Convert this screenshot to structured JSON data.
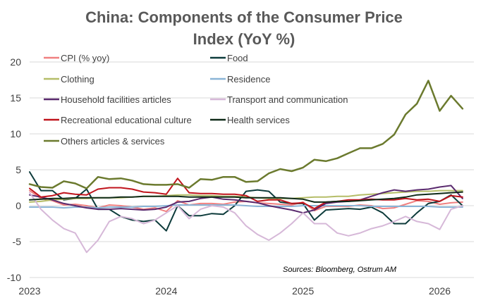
{
  "chart_data": {
    "type": "line",
    "title_line1": "China:  Components of the Consumer Price",
    "title_line2": "Index (YoY %)",
    "xlabel": "",
    "ylabel": "",
    "ylim": [
      -10,
      20
    ],
    "yticks": [
      -10,
      -5,
      0,
      5,
      10,
      15,
      20
    ],
    "xlim": [
      2023.0,
      2026.25
    ],
    "xticks": [
      2023,
      2024,
      2025,
      2026
    ],
    "source": "Sources: Bloomberg, Ostrum AM",
    "x": [
      2023.0,
      2023.083,
      2023.167,
      2023.25,
      2023.333,
      2023.417,
      2023.5,
      2023.583,
      2023.667,
      2023.75,
      2023.833,
      2023.917,
      2024.0,
      2024.083,
      2024.167,
      2024.25,
      2024.333,
      2024.417,
      2024.5,
      2024.583,
      2024.667,
      2024.75,
      2024.833,
      2024.917,
      2025.0,
      2025.083,
      2025.167,
      2025.25,
      2025.333,
      2025.417,
      2025.5,
      2025.583,
      2025.667,
      2025.75,
      2025.833,
      2025.917,
      2026.0,
      2026.083,
      2026.167
    ],
    "series": [
      {
        "name": "CPI (% yoy)",
        "color": "#f08080",
        "width": 2,
        "values": [
          2.1,
          1.0,
          0.7,
          0.1,
          0.2,
          0.0,
          -0.3,
          0.1,
          0.0,
          -0.2,
          -0.5,
          -0.3,
          -0.8,
          0.7,
          0.1,
          0.3,
          0.3,
          0.2,
          0.5,
          0.6,
          0.4,
          0.3,
          0.2,
          0.1,
          0.5,
          -0.7,
          -0.1,
          -0.1,
          -0.1,
          0.1,
          0.0,
          -0.4,
          -0.3,
          0.2,
          0.7,
          0.6,
          0.2,
          0.4,
          0.5
        ]
      },
      {
        "name": "Food",
        "color": "#0d3b3b",
        "width": 2,
        "values": [
          4.7,
          2.1,
          2.1,
          0.8,
          1.0,
          2.3,
          -0.5,
          -0.5,
          -1.5,
          -2.0,
          -2.2,
          -2.0,
          -3.5,
          0.0,
          -1.4,
          -1.4,
          -1.1,
          -1.2,
          0.0,
          2.0,
          2.2,
          2.0,
          0.5,
          0.3,
          0.3,
          -2.0,
          -0.6,
          -0.5,
          -0.4,
          -0.5,
          -0.2,
          -1.0,
          -2.5,
          -2.5,
          -1.0,
          0.3,
          0.6,
          1.5,
          0.0
        ]
      },
      {
        "name": "Clothing",
        "color": "#b5bd68",
        "width": 2,
        "values": [
          0.5,
          0.6,
          0.8,
          0.9,
          1.0,
          1.0,
          1.1,
          1.1,
          1.1,
          1.2,
          1.3,
          1.3,
          1.4,
          1.5,
          1.5,
          1.4,
          1.4,
          1.3,
          1.3,
          1.2,
          1.1,
          1.0,
          1.0,
          1.0,
          1.1,
          1.2,
          1.2,
          1.3,
          1.3,
          1.5,
          1.6,
          1.7,
          1.8,
          1.9,
          2.0,
          2.0,
          2.1,
          2.1,
          2.1
        ]
      },
      {
        "name": "Residence",
        "color": "#8ab4d6",
        "width": 2,
        "values": [
          -0.2,
          -0.2,
          -0.2,
          -0.3,
          -0.2,
          -0.2,
          -0.3,
          -0.2,
          -0.2,
          -0.2,
          -0.1,
          -0.1,
          0.0,
          0.1,
          0.1,
          0.1,
          0.1,
          0.1,
          0.1,
          0.0,
          -0.1,
          -0.1,
          -0.1,
          -0.1,
          0.0,
          0.0,
          0.0,
          0.0,
          0.0,
          0.0,
          -0.1,
          -0.1,
          -0.1,
          -0.1,
          -0.1,
          -0.1,
          -0.2,
          -0.2,
          -0.2
        ]
      },
      {
        "name": "Household facilities articles",
        "color": "#5a2a6e",
        "width": 2,
        "values": [
          1.5,
          1.2,
          0.8,
          0.3,
          0.0,
          -0.3,
          -0.5,
          -0.5,
          -0.4,
          -0.5,
          -0.6,
          -0.5,
          -0.2,
          0.5,
          0.6,
          1.0,
          1.2,
          0.9,
          0.8,
          0.6,
          0.4,
          0.0,
          -0.3,
          -0.6,
          -1.0,
          -0.6,
          0.3,
          0.5,
          0.6,
          0.8,
          1.3,
          1.8,
          2.2,
          2.0,
          2.2,
          2.3,
          2.6,
          2.8,
          1.0
        ]
      },
      {
        "name": "Transport and communication",
        "color": "#d6b8d8",
        "width": 2,
        "values": [
          1.8,
          -0.5,
          -2.0,
          -3.2,
          -3.8,
          -6.5,
          -4.8,
          -2.2,
          -1.5,
          -1.8,
          -2.5,
          -2.0,
          -1.0,
          0.0,
          -1.8,
          -0.5,
          0.0,
          -0.2,
          -1.0,
          -2.8,
          -4.0,
          -4.8,
          -3.8,
          -2.5,
          -1.0,
          -2.5,
          -2.5,
          -3.8,
          -4.2,
          -3.8,
          -3.2,
          -2.8,
          -2.2,
          -1.5,
          -2.2,
          -2.5,
          -3.3,
          -0.5,
          0.0
        ]
      },
      {
        "name": "Recreational educational culture",
        "color": "#c0141c",
        "width": 2,
        "values": [
          2.4,
          1.2,
          1.4,
          1.8,
          1.6,
          1.5,
          2.3,
          2.5,
          2.5,
          2.3,
          1.9,
          1.8,
          1.6,
          3.8,
          1.8,
          1.7,
          1.7,
          1.6,
          1.6,
          1.4,
          0.6,
          0.8,
          0.8,
          0.3,
          0.4,
          -0.4,
          0.5,
          0.6,
          0.8,
          0.8,
          0.9,
          0.8,
          0.8,
          1.0,
          0.8,
          0.9,
          0.6,
          1.4,
          1.2
        ]
      },
      {
        "name": "Health services",
        "color": "#0f2a18",
        "width": 2,
        "values": [
          0.8,
          0.9,
          1.0,
          1.0,
          1.1,
          1.1,
          1.1,
          1.1,
          1.2,
          1.2,
          1.3,
          1.3,
          1.3,
          1.3,
          1.2,
          1.2,
          1.2,
          1.2,
          1.2,
          1.1,
          1.1,
          1.1,
          1.1,
          1.0,
          0.9,
          0.5,
          0.5,
          0.6,
          0.6,
          0.7,
          0.8,
          0.9,
          1.0,
          1.2,
          1.5,
          1.6,
          1.7,
          1.8,
          1.9
        ]
      },
      {
        "name": "Others articles & services",
        "color": "#6b7a2e",
        "width": 2.5,
        "values": [
          3.0,
          2.6,
          2.5,
          3.4,
          3.1,
          2.4,
          4.0,
          3.7,
          3.8,
          3.5,
          3.0,
          2.9,
          2.9,
          3.0,
          2.5,
          3.7,
          3.6,
          4.0,
          4.0,
          3.3,
          3.4,
          4.5,
          5.1,
          4.8,
          5.3,
          6.4,
          6.2,
          6.6,
          7.3,
          8.0,
          8.0,
          8.6,
          9.9,
          12.7,
          14.2,
          17.4,
          13.2,
          15.3,
          13.5
        ]
      }
    ]
  }
}
